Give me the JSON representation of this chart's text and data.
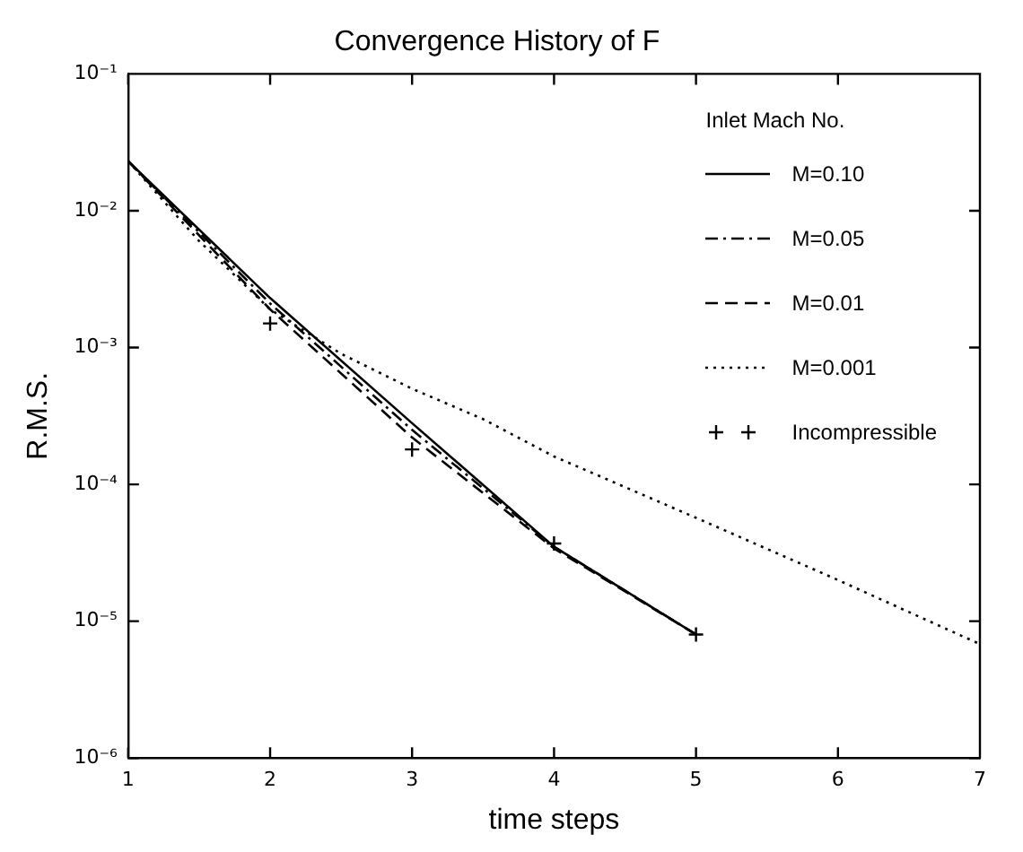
{
  "chart_data": {
    "type": "line",
    "title": "Convergence History of F",
    "xlabel": "time steps",
    "ylabel": "R.M.S.",
    "legend_title": "Inlet Mach No.",
    "legend": "top right",
    "log": "y",
    "grid": false,
    "xlim": [
      1,
      7
    ],
    "xticks": [
      1,
      2,
      3,
      4,
      5,
      6,
      7
    ],
    "ylim": [
      1e-06,
      0.1
    ],
    "yticks": [
      {
        "value": 1e-06,
        "label": "10⁻⁶"
      },
      {
        "value": 1e-05,
        "label": "10⁻⁵"
      },
      {
        "value": 0.0001,
        "label": "10⁻⁴"
      },
      {
        "value": 0.001,
        "label": "10⁻³"
      },
      {
        "value": 0.01,
        "label": "10⁻²"
      },
      {
        "value": 0.1,
        "label": "10⁻¹"
      }
    ],
    "series": [
      {
        "name": "M=0.10",
        "color": "#000000",
        "line_style": "solid",
        "marker": "none",
        "x": [
          1,
          2,
          3,
          4,
          5
        ],
        "values": [
          0.023,
          0.0023,
          0.00028,
          3.5e-05,
          8e-06
        ]
      },
      {
        "name": "M=0.05",
        "color": "#000000",
        "line_style": "dashdot",
        "marker": "none",
        "x": [
          1,
          2,
          3,
          4,
          5
        ],
        "values": [
          0.023,
          0.0021,
          0.00025,
          3.5e-05,
          8e-06
        ]
      },
      {
        "name": "M=0.01",
        "color": "#000000",
        "line_style": "dashed",
        "marker": "none",
        "x": [
          1,
          2,
          3,
          4,
          5
        ],
        "values": [
          0.023,
          0.0019,
          0.00022,
          3.4e-05,
          8e-06
        ]
      },
      {
        "name": "M=0.001",
        "color": "#000000",
        "line_style": "dotted",
        "marker": "none",
        "x": [
          1,
          1.5,
          2,
          2.5,
          3,
          3.5,
          4,
          5,
          6,
          7
        ],
        "values": [
          0.023,
          0.006,
          0.0019,
          0.0009,
          0.0005,
          0.0003,
          0.00016,
          5.7e-05,
          2e-05,
          6.8e-06
        ]
      },
      {
        "name": "Incompressible",
        "type": "scatter",
        "color": "#000000",
        "marker": "cross",
        "x": [
          2,
          3,
          4,
          5
        ],
        "values": [
          0.0015,
          0.00018,
          3.7e-05,
          8e-06
        ]
      }
    ]
  }
}
